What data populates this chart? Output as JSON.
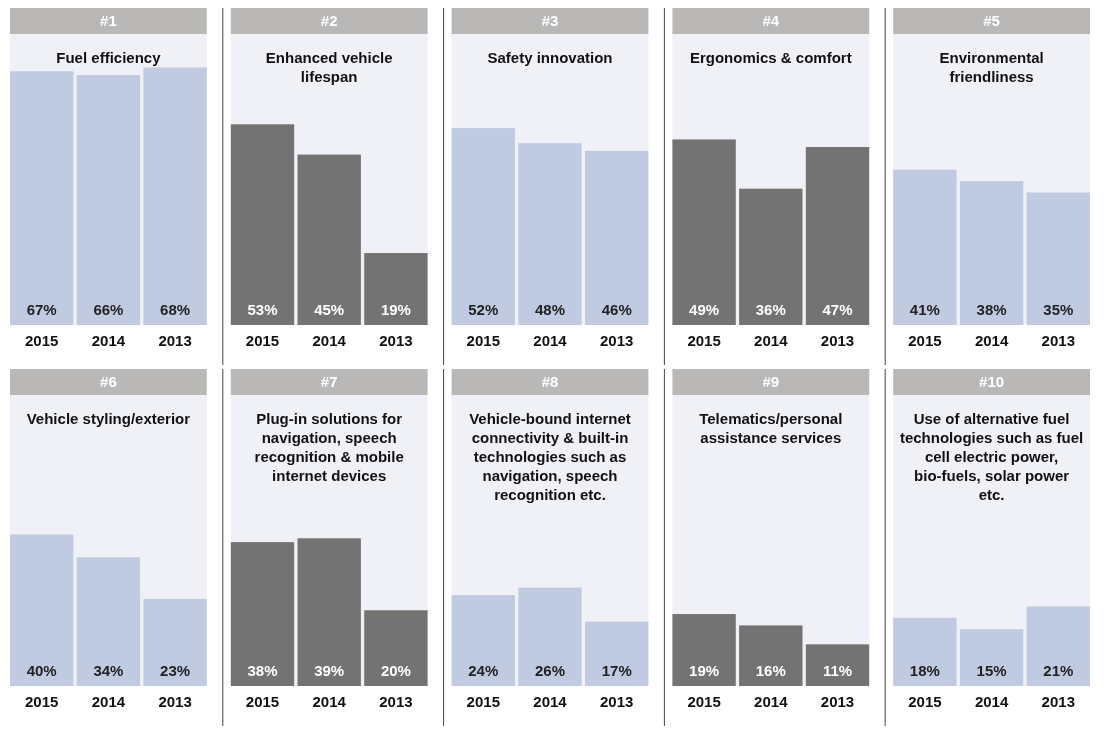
{
  "chart_data": [
    {
      "type": "bar",
      "title": "#1",
      "subtitle": "Fuel efficiency",
      "categories": [
        "2015",
        "2014",
        "2013"
      ],
      "values": [
        67,
        66,
        68
      ],
      "value_labels": [
        "67%",
        "66%",
        "68%"
      ],
      "color": "#c0cbe2"
    },
    {
      "type": "bar",
      "title": "#2",
      "subtitle": "Enhanced vehicle lifespan",
      "categories": [
        "2015",
        "2014",
        "2013"
      ],
      "values": [
        53,
        45,
        19
      ],
      "value_labels": [
        "53%",
        "45%",
        "19%"
      ],
      "color": "#737373"
    },
    {
      "type": "bar",
      "title": "#3",
      "subtitle": "Safety innovation",
      "categories": [
        "2015",
        "2014",
        "2013"
      ],
      "values": [
        52,
        48,
        46
      ],
      "value_labels": [
        "52%",
        "48%",
        "46%"
      ],
      "color": "#c0cbe2"
    },
    {
      "type": "bar",
      "title": "#4",
      "subtitle": "Ergonomics & comfort",
      "categories": [
        "2015",
        "2014",
        "2013"
      ],
      "values": [
        49,
        36,
        47
      ],
      "value_labels": [
        "49%",
        "36%",
        "47%"
      ],
      "color": "#737373"
    },
    {
      "type": "bar",
      "title": "#5",
      "subtitle": "Environmental friendliness",
      "categories": [
        "2015",
        "2014",
        "2013"
      ],
      "values": [
        41,
        38,
        35
      ],
      "value_labels": [
        "41%",
        "38%",
        "35%"
      ],
      "color": "#c0cbe2"
    },
    {
      "type": "bar",
      "title": "#6",
      "subtitle": "Vehicle styling/exterior",
      "categories": [
        "2015",
        "2014",
        "2013"
      ],
      "values": [
        40,
        34,
        23
      ],
      "value_labels": [
        "40%",
        "34%",
        "23%"
      ],
      "color": "#c0cbe2"
    },
    {
      "type": "bar",
      "title": "#7",
      "subtitle": "Plug-in solutions for navigation, speech recognition & mobile internet devices",
      "categories": [
        "2015",
        "2014",
        "2013"
      ],
      "values": [
        38,
        39,
        20
      ],
      "value_labels": [
        "38%",
        "39%",
        "20%"
      ],
      "color": "#737373"
    },
    {
      "type": "bar",
      "title": "#8",
      "subtitle": "Vehicle-bound internet connectivity & built-in technologies such as navigation, speech recognition etc.",
      "categories": [
        "2015",
        "2014",
        "2013"
      ],
      "values": [
        24,
        26,
        17
      ],
      "value_labels": [
        "24%",
        "26%",
        "17%"
      ],
      "color": "#c0cbe2"
    },
    {
      "type": "bar",
      "title": "#9",
      "subtitle": "Telematics/personal assistance services",
      "categories": [
        "2015",
        "2014",
        "2013"
      ],
      "values": [
        19,
        16,
        11
      ],
      "value_labels": [
        "19%",
        "16%",
        "11%"
      ],
      "color": "#737373"
    },
    {
      "type": "bar",
      "title": "#10",
      "subtitle": "Use of alternative fuel technologies such as fuel cell electric power, bio-fuels, solar power etc.",
      "categories": [
        "2015",
        "2014",
        "2013"
      ],
      "values": [
        18,
        15,
        21
      ],
      "value_labels": [
        "18%",
        "15%",
        "21%"
      ],
      "color": "#c0cbe2"
    }
  ]
}
